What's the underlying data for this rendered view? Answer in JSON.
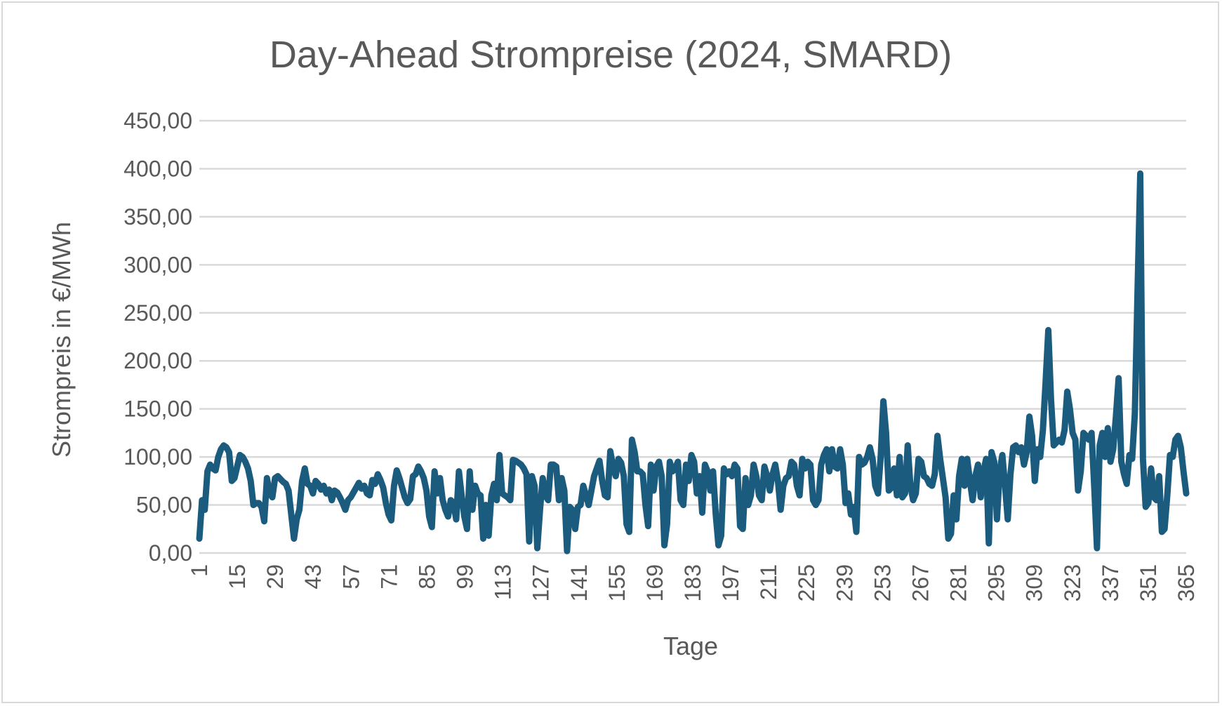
{
  "chart_data": {
    "type": "line",
    "title": "Day-Ahead Strompreise (2024, SMARD)",
    "xlabel": "Tage",
    "ylabel": "Strompreis in €/MWh",
    "ylim": [
      0,
      450
    ],
    "yticks": [
      "0,00",
      "50,00",
      "100,00",
      "150,00",
      "200,00",
      "250,00",
      "300,00",
      "350,00",
      "400,00",
      "450,00"
    ],
    "xticks": [
      "1",
      "15",
      "29",
      "43",
      "57",
      "71",
      "85",
      "99",
      "113",
      "127",
      "141",
      "155",
      "169",
      "183",
      "197",
      "211",
      "225",
      "239",
      "253",
      "267",
      "281",
      "295",
      "309",
      "323",
      "337",
      "351",
      "365"
    ],
    "x_range": [
      1,
      365
    ],
    "grid": true,
    "legend": "none",
    "colors": {
      "series": "#1b5b7e",
      "grid": "#d9d9d9",
      "text": "#595959"
    },
    "series": [
      {
        "values": [
          15,
          55,
          45,
          85,
          92,
          88,
          86,
          100,
          108,
          112,
          110,
          105,
          75,
          78,
          90,
          102,
          100,
          95,
          88,
          75,
          50,
          52,
          52,
          48,
          33,
          78,
          62,
          58,
          78,
          80,
          77,
          74,
          72,
          65,
          40,
          15,
          35,
          45,
          75,
          88,
          72,
          70,
          62,
          75,
          72,
          66,
          70,
          62,
          66,
          55,
          65,
          63,
          58,
          52,
          45,
          55,
          58,
          63,
          68,
          73,
          67,
          70,
          62,
          60,
          76,
          72,
          82,
          76,
          68,
          52,
          40,
          34,
          70,
          86,
          78,
          68,
          58,
          52,
          56,
          80,
          82,
          90,
          85,
          78,
          65,
          38,
          27,
          85,
          62,
          78,
          55,
          45,
          38,
          55,
          52,
          35,
          85,
          60,
          38,
          25,
          85,
          45,
          70,
          62,
          60,
          15,
          50,
          18,
          60,
          72,
          55,
          102,
          62,
          60,
          58,
          55,
          97,
          96,
          94,
          92,
          88,
          82,
          12,
          80,
          70,
          5,
          45,
          78,
          60,
          55,
          92,
          92,
          90,
          55,
          78,
          65,
          2,
          48,
          45,
          25,
          48,
          50,
          70,
          60,
          50,
          65,
          80,
          88,
          96,
          75,
          60,
          58,
          106,
          90,
          80,
          98,
          94,
          80,
          30,
          22,
          118,
          105,
          85,
          85,
          82,
          50,
          28,
          92,
          65,
          90,
          95,
          80,
          8,
          30,
          95,
          85,
          88,
          95,
          55,
          50,
          92,
          75,
          102,
          95,
          62,
          80,
          42,
          92,
          85,
          65,
          85,
          40,
          8,
          18,
          88,
          82,
          85,
          80,
          92,
          88,
          28,
          25,
          78,
          50,
          60,
          92,
          80,
          60,
          55,
          90,
          80,
          65,
          82,
          92,
          75,
          45,
          70,
          78,
          80,
          95,
          92,
          70,
          60,
          98,
          88,
          95,
          92,
          55,
          50,
          55,
          92,
          102,
          108,
          85,
          108,
          90,
          88,
          108,
          92,
          52,
          62,
          40,
          48,
          22,
          100,
          92,
          94,
          100,
          110,
          98,
          70,
          62,
          100,
          158,
          125,
          65,
          68,
          88,
          60,
          100,
          58,
          62,
          112,
          70,
          55,
          62,
          98,
          95,
          80,
          78,
          72,
          70,
          82,
          122,
          98,
          78,
          58,
          15,
          20,
          60,
          35,
          80,
          98,
          70,
          98,
          75,
          55,
          80,
          92,
          58,
          85,
          98,
          10,
          105,
          95,
          35,
          85,
          102,
          70,
          35,
          82,
          110,
          112,
          105,
          110,
          92,
          105,
          142,
          122,
          75,
          108,
          100,
          128,
          178,
          232,
          160,
          112,
          115,
          118,
          115,
          128,
          168,
          150,
          125,
          118,
          65,
          85,
          125,
          122,
          118,
          125,
          68,
          5,
          112,
          125,
          100,
          130,
          95,
          108,
          142,
          182,
          95,
          82,
          72,
          102,
          98,
          145,
          272,
          395,
          98,
          48,
          52,
          88,
          58,
          55,
          80,
          22,
          25,
          60,
          102,
          100,
          118,
          122,
          110,
          85,
          62
        ]
      }
    ]
  }
}
